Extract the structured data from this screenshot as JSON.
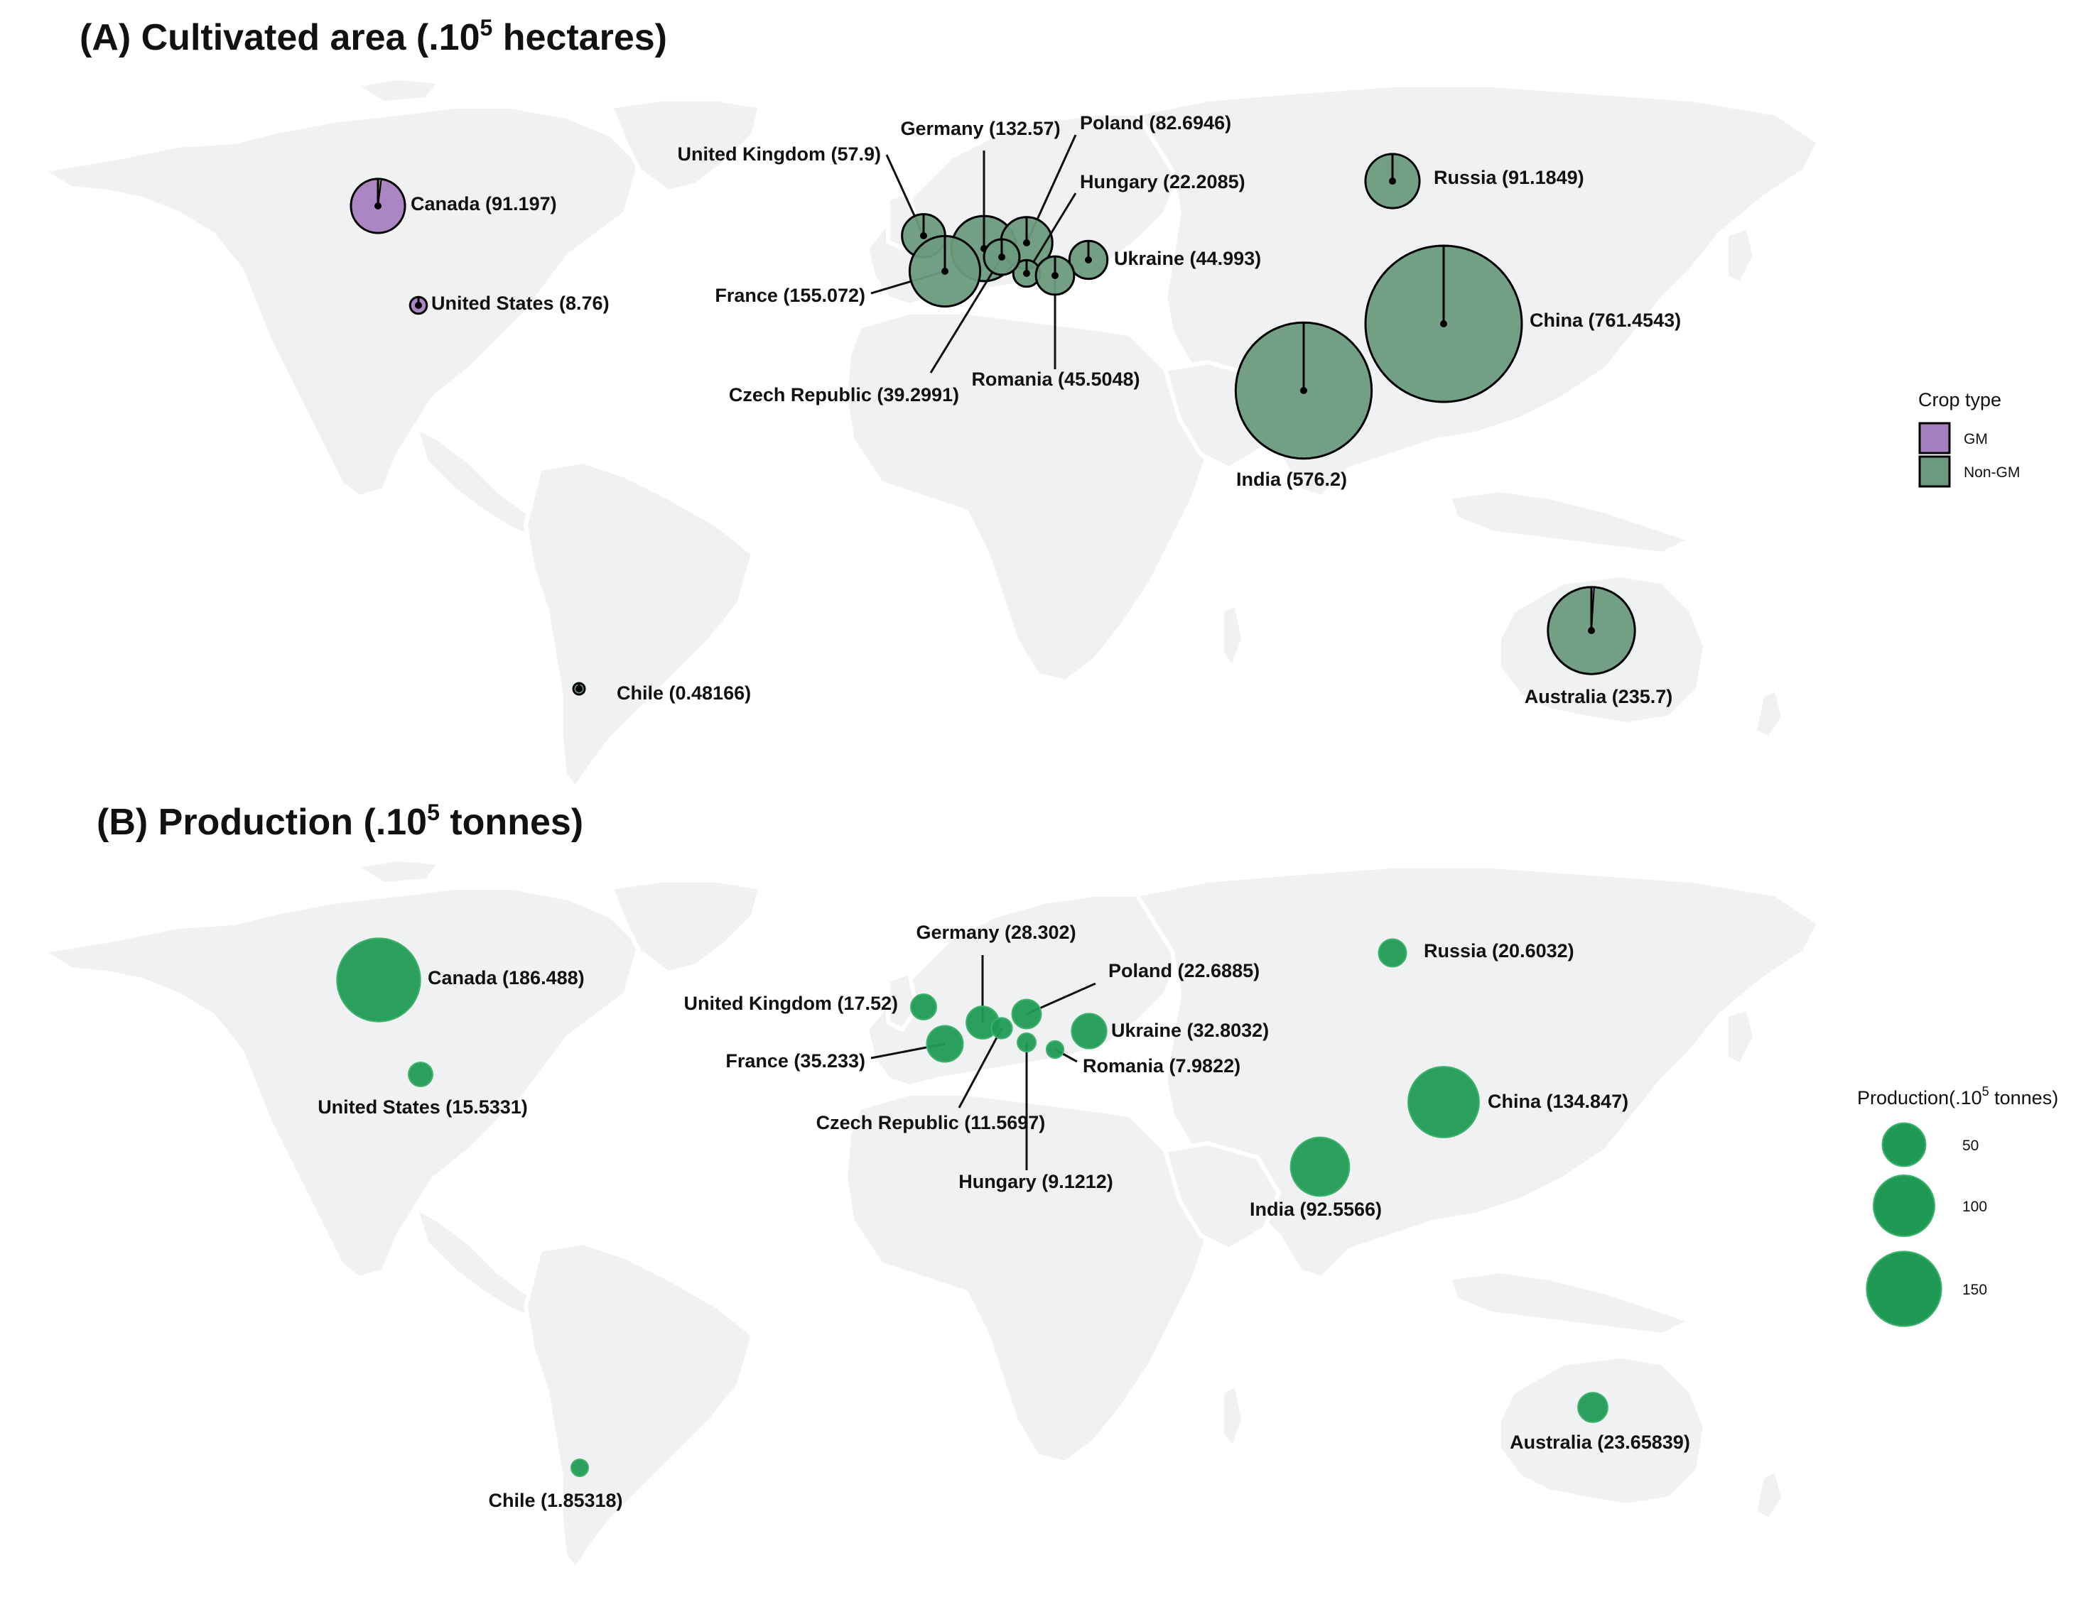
{
  "panel_a": {
    "title": "(A) Cultivated area (.10",
    "title_sup": "5",
    "title_end": " hectares)",
    "legend": {
      "title": "Crop type",
      "items": [
        {
          "label": "GM",
          "color": "#a67fc0"
        },
        {
          "label": "Non-GM",
          "color": "#6b9b7e"
        }
      ]
    }
  },
  "panel_b": {
    "title": "(B) Production (.10",
    "title_sup": "5",
    "title_end": " tonnes)",
    "legend": {
      "title": "Production(.10",
      "title_sup": "5",
      "title_end": " tonnes)",
      "items": [
        {
          "label": "50",
          "value": 50
        },
        {
          "label": "100",
          "value": 100
        },
        {
          "label": "150",
          "value": 150
        }
      ],
      "color": "#1f9a55"
    }
  },
  "chart_data": [
    {
      "type": "map-pie",
      "title": "(A) Cultivated area (.10^5 hectares)",
      "series": [
        {
          "country": "Canada",
          "label": "Canada (91.197)",
          "value": 91.197,
          "crop_type": "GM",
          "gm_fraction": 0.98
        },
        {
          "country": "United States",
          "label": "United States (8.76)",
          "value": 8.76,
          "crop_type": "GM",
          "gm_fraction": 0.99
        },
        {
          "country": "United Kingdom",
          "label": "United Kingdom (57.9)",
          "value": 57.9,
          "crop_type": "Non-GM",
          "gm_fraction": 0
        },
        {
          "country": "Germany",
          "label": "Germany (132.57)",
          "value": 132.57,
          "crop_type": "Non-GM",
          "gm_fraction": 0
        },
        {
          "country": "Poland",
          "label": "Poland (82.6946)",
          "value": 82.6946,
          "crop_type": "Non-GM",
          "gm_fraction": 0
        },
        {
          "country": "Hungary",
          "label": "Hungary (22.2085)",
          "value": 22.2085,
          "crop_type": "Non-GM",
          "gm_fraction": 0
        },
        {
          "country": "Ukraine",
          "label": "Ukraine (44.993)",
          "value": 44.993,
          "crop_type": "Non-GM",
          "gm_fraction": 0
        },
        {
          "country": "France",
          "label": "France (155.072)",
          "value": 155.072,
          "crop_type": "Non-GM",
          "gm_fraction": 0
        },
        {
          "country": "Czech Republic",
          "label": "Czech Republic (39.2991)",
          "value": 39.2991,
          "crop_type": "Non-GM",
          "gm_fraction": 0
        },
        {
          "country": "Romania",
          "label": "Romania (45.5048)",
          "value": 45.5048,
          "crop_type": "Non-GM",
          "gm_fraction": 0
        },
        {
          "country": "Russia",
          "label": "Russia (91.1849)",
          "value": 91.1849,
          "crop_type": "Non-GM",
          "gm_fraction": 0
        },
        {
          "country": "China",
          "label": "China (761.4543)",
          "value": 761.4543,
          "crop_type": "Non-GM",
          "gm_fraction": 0
        },
        {
          "country": "India",
          "label": "India (576.2)",
          "value": 576.2,
          "crop_type": "Non-GM",
          "gm_fraction": 0
        },
        {
          "country": "Australia",
          "label": "Australia (235.7)",
          "value": 235.7,
          "crop_type": "Non-GM",
          "gm_fraction": 0.01
        },
        {
          "country": "Chile",
          "label": "Chile (0.48166)",
          "value": 0.48166,
          "crop_type": "Non-GM",
          "gm_fraction": 0
        }
      ]
    },
    {
      "type": "map-bubble",
      "title": "(B) Production (.10^5 tonnes)",
      "series": [
        {
          "country": "Canada",
          "label": "Canada (186.488)",
          "value": 186.488
        },
        {
          "country": "United States",
          "label": "United States (15.5331)",
          "value": 15.5331
        },
        {
          "country": "United Kingdom",
          "label": "United Kingdom (17.52)",
          "value": 17.52
        },
        {
          "country": "Germany",
          "label": "Germany (28.302)",
          "value": 28.302
        },
        {
          "country": "Poland",
          "label": "Poland (22.6885)",
          "value": 22.6885
        },
        {
          "country": "Ukraine",
          "label": "Ukraine (32.8032)",
          "value": 32.8032
        },
        {
          "country": "France",
          "label": "France (35.233)",
          "value": 35.233
        },
        {
          "country": "Romania",
          "label": "Romania (7.9822)",
          "value": 7.9822
        },
        {
          "country": "Czech Republic",
          "label": "Czech Republic (11.5697)",
          "value": 11.5697
        },
        {
          "country": "Hungary",
          "label": "Hungary (9.1212)",
          "value": 9.1212
        },
        {
          "country": "Russia",
          "label": "Russia (20.6032)",
          "value": 20.6032
        },
        {
          "country": "China",
          "label": "China (134.847)",
          "value": 134.847
        },
        {
          "country": "India",
          "label": "India (92.5566)",
          "value": 92.5566
        },
        {
          "country": "Australia",
          "label": "Australia (23.65839)",
          "value": 23.65839
        },
        {
          "country": "Chile",
          "label": "Chile (1.85318)",
          "value": 1.85318
        }
      ]
    }
  ]
}
